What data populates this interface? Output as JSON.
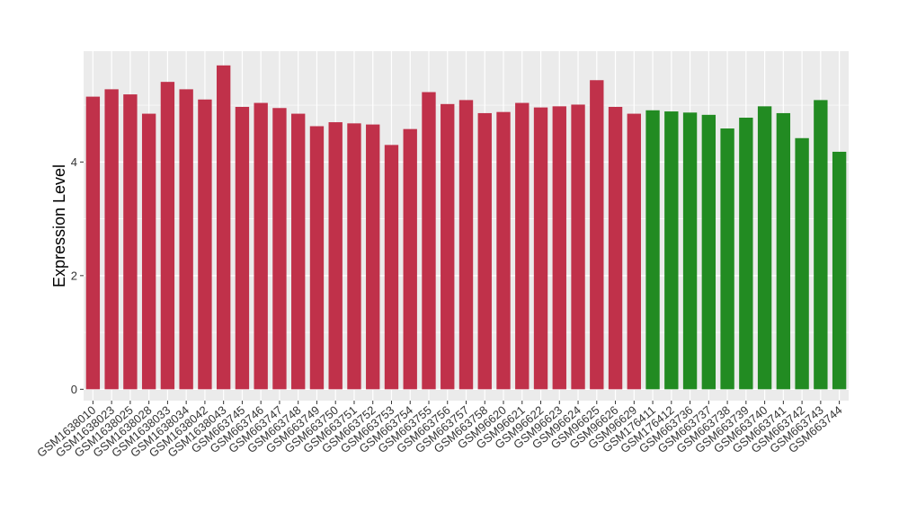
{
  "chart_data": {
    "type": "bar",
    "title": "",
    "xlabel": "",
    "ylabel": "Expression Level",
    "ylim": [
      -0.2,
      5.95
    ],
    "yticks": [
      0,
      2,
      4
    ],
    "grid": true,
    "legend": "none",
    "colors": {
      "group1": "#C0314A",
      "group2": "#228B22",
      "panel": "#EBEBEB",
      "grid": "#FFFFFF"
    },
    "categories": [
      "GSM1638010",
      "GSM1638023",
      "GSM1638025",
      "GSM1638028",
      "GSM1638033",
      "GSM1638034",
      "GSM1638042",
      "GSM1638043",
      "GSM663745",
      "GSM663746",
      "GSM663747",
      "GSM663748",
      "GSM663749",
      "GSM663750",
      "GSM663751",
      "GSM663752",
      "GSM663753",
      "GSM663754",
      "GSM663755",
      "GSM663756",
      "GSM663757",
      "GSM663758",
      "GSM96620",
      "GSM96621",
      "GSM96622",
      "GSM96623",
      "GSM96624",
      "GSM96625",
      "GSM96626",
      "GSM96629",
      "GSM176411",
      "GSM176412",
      "GSM663736",
      "GSM663737",
      "GSM663738",
      "GSM663739",
      "GSM663740",
      "GSM663741",
      "GSM663742",
      "GSM663743",
      "GSM663744"
    ],
    "values": [
      5.15,
      5.28,
      5.19,
      4.85,
      5.41,
      5.28,
      5.1,
      5.7,
      4.97,
      5.04,
      4.95,
      4.85,
      4.63,
      4.7,
      4.68,
      4.66,
      4.3,
      4.58,
      5.23,
      5.02,
      5.09,
      4.86,
      4.88,
      5.04,
      4.96,
      4.98,
      5.01,
      5.44,
      4.97,
      4.85,
      4.91,
      4.89,
      4.87,
      4.83,
      4.59,
      4.78,
      4.98,
      4.86,
      4.42,
      5.09,
      4.18
    ],
    "groups": [
      "group1",
      "group1",
      "group1",
      "group1",
      "group1",
      "group1",
      "group1",
      "group1",
      "group1",
      "group1",
      "group1",
      "group1",
      "group1",
      "group1",
      "group1",
      "group1",
      "group1",
      "group1",
      "group1",
      "group1",
      "group1",
      "group1",
      "group1",
      "group1",
      "group1",
      "group1",
      "group1",
      "group1",
      "group1",
      "group1",
      "group2",
      "group2",
      "group2",
      "group2",
      "group2",
      "group2",
      "group2",
      "group2",
      "group2",
      "group2",
      "group2"
    ]
  }
}
